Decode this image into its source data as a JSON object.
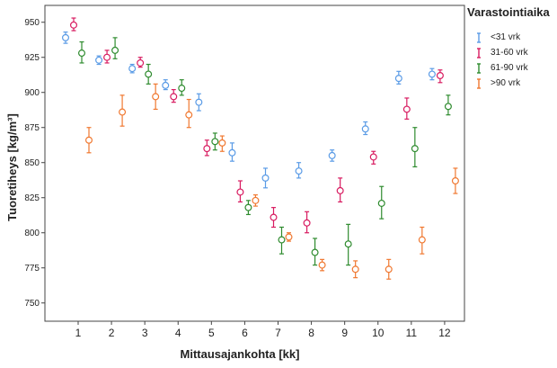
{
  "chart_data": {
    "type": "scatter",
    "subtype": "error-bar",
    "xlabel": "Mittausajankohta [kk]",
    "ylabel": "Tuoretiheys [kg/m³]",
    "categories": [
      "1",
      "2",
      "3",
      "4",
      "5",
      "6",
      "7",
      "8",
      "9",
      "10",
      "11",
      "12"
    ],
    "ylim": [
      737,
      962
    ],
    "yticks": [
      750,
      775,
      800,
      825,
      850,
      875,
      900,
      925,
      950
    ],
    "grid": true,
    "legend": {
      "title": "Varastointiaika",
      "position": "right"
    },
    "series": [
      {
        "name": "<31 vrk",
        "color": "#5a9be6",
        "points": [
          {
            "x": "1",
            "y": 939,
            "low": 935,
            "high": 943
          },
          {
            "x": "2",
            "y": 923,
            "low": 920,
            "high": 926
          },
          {
            "x": "3",
            "y": 917,
            "low": 914,
            "high": 920
          },
          {
            "x": "4",
            "y": 905,
            "low": 902,
            "high": 909
          },
          {
            "x": "5",
            "y": 893,
            "low": 887,
            "high": 899
          },
          {
            "x": "6",
            "y": 857,
            "low": 851,
            "high": 864
          },
          {
            "x": "7",
            "y": 839,
            "low": 832,
            "high": 846
          },
          {
            "x": "8",
            "y": 844,
            "low": 839,
            "high": 850
          },
          {
            "x": "9",
            "y": 855,
            "low": 851,
            "high": 859
          },
          {
            "x": "10",
            "y": 874,
            "low": 870,
            "high": 879
          },
          {
            "x": "11",
            "y": 910,
            "low": 906,
            "high": 915
          },
          {
            "x": "12",
            "y": 913,
            "low": 909,
            "high": 917
          }
        ]
      },
      {
        "name": "31-60 vrk",
        "color": "#d81b60",
        "points": [
          {
            "x": "1",
            "y": 948,
            "low": 944,
            "high": 953
          },
          {
            "x": "2",
            "y": 925,
            "low": 921,
            "high": 930
          },
          {
            "x": "3",
            "y": 921,
            "low": 918,
            "high": 925
          },
          {
            "x": "4",
            "y": 897,
            "low": 893,
            "high": 902
          },
          {
            "x": "5",
            "y": 860,
            "low": 855,
            "high": 866
          },
          {
            "x": "6",
            "y": 829,
            "low": 822,
            "high": 837
          },
          {
            "x": "7",
            "y": 811,
            "low": 804,
            "high": 818
          },
          {
            "x": "8",
            "y": 807,
            "low": 800,
            "high": 815
          },
          {
            "x": "9",
            "y": 830,
            "low": 822,
            "high": 839
          },
          {
            "x": "10",
            "y": 854,
            "low": 849,
            "high": 858
          },
          {
            "x": "11",
            "y": 888,
            "low": 881,
            "high": 896
          },
          {
            "x": "12",
            "y": 912,
            "low": 907,
            "high": 916
          }
        ]
      },
      {
        "name": "61-90 vrk",
        "color": "#2e8b2e",
        "points": [
          {
            "x": "1",
            "y": 928,
            "low": 921,
            "high": 936
          },
          {
            "x": "2",
            "y": 930,
            "low": 924,
            "high": 939
          },
          {
            "x": "3",
            "y": 913,
            "low": 906,
            "high": 920
          },
          {
            "x": "4",
            "y": 903,
            "low": 898,
            "high": 909
          },
          {
            "x": "5",
            "y": 865,
            "low": 859,
            "high": 871
          },
          {
            "x": "6",
            "y": 818,
            "low": 813,
            "high": 823
          },
          {
            "x": "7",
            "y": 795,
            "low": 785,
            "high": 804
          },
          {
            "x": "8",
            "y": 786,
            "low": 777,
            "high": 796
          },
          {
            "x": "9",
            "y": 792,
            "low": 777,
            "high": 806
          },
          {
            "x": "10",
            "y": 821,
            "low": 810,
            "high": 833
          },
          {
            "x": "11",
            "y": 860,
            "low": 847,
            "high": 875
          },
          {
            "x": "12",
            "y": 890,
            "low": 884,
            "high": 898
          }
        ]
      },
      {
        "name": ">90 vrk",
        "color": "#f07830",
        "points": [
          {
            "x": "1",
            "y": 866,
            "low": 857,
            "high": 875
          },
          {
            "x": "2",
            "y": 886,
            "low": 876,
            "high": 898
          },
          {
            "x": "3",
            "y": 897,
            "low": 888,
            "high": 906
          },
          {
            "x": "4",
            "y": 884,
            "low": 875,
            "high": 895
          },
          {
            "x": "5",
            "y": 864,
            "low": 858,
            "high": 869
          },
          {
            "x": "6",
            "y": 823,
            "low": 819,
            "high": 827
          },
          {
            "x": "7",
            "y": 797,
            "low": 794,
            "high": 800
          },
          {
            "x": "8",
            "y": 777,
            "low": 773,
            "high": 781
          },
          {
            "x": "9",
            "y": 774,
            "low": 768,
            "high": 780
          },
          {
            "x": "10",
            "y": 774,
            "low": 767,
            "high": 781
          },
          {
            "x": "11",
            "y": 795,
            "low": 785,
            "high": 804
          },
          {
            "x": "12",
            "y": 837,
            "low": 828,
            "high": 846
          }
        ]
      }
    ]
  }
}
